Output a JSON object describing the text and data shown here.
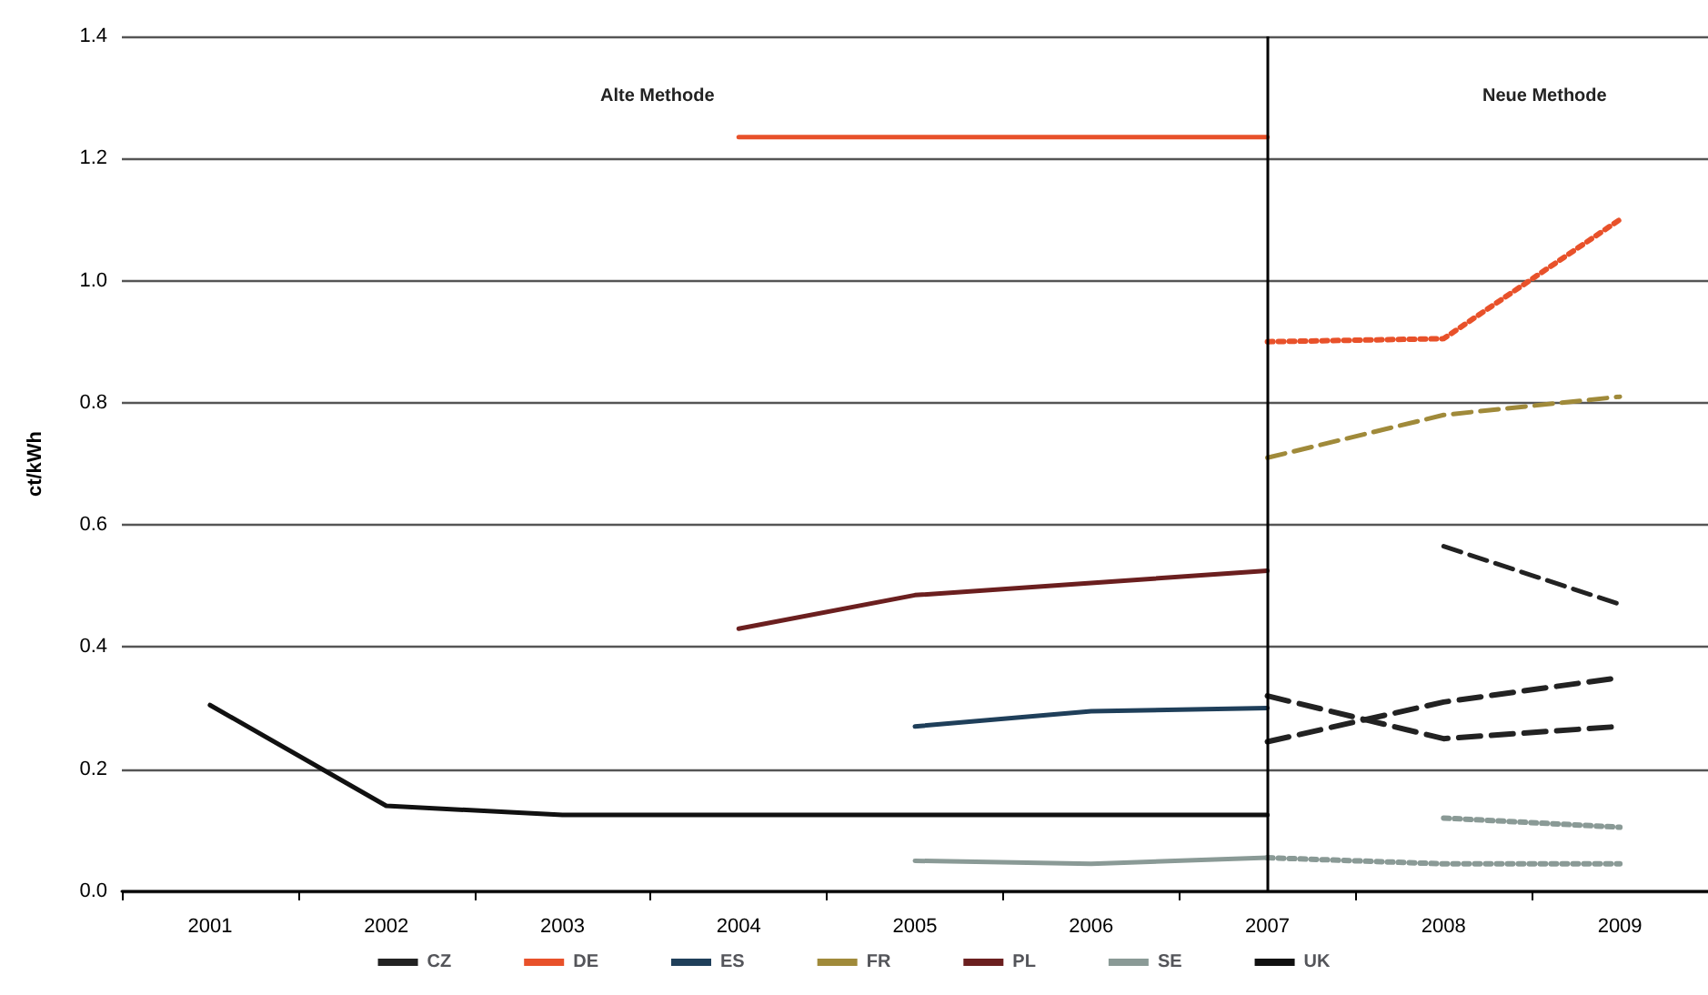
{
  "chart_data": {
    "type": "line",
    "ylabel": "ct/kWh",
    "categories": [
      "2001",
      "2002",
      "2003",
      "2004",
      "2005",
      "2006",
      "2007",
      "2008",
      "2009"
    ],
    "ylim": [
      0,
      1.4
    ],
    "yticks": [
      {
        "value": 0,
        "label": "0.0"
      },
      {
        "value": 0.2,
        "label": "0.2"
      },
      {
        "value": 0.4,
        "label": "0.4"
      },
      {
        "value": 0.6,
        "label": "0.6"
      },
      {
        "value": 0.8,
        "label": "0.8"
      },
      {
        "value": 1,
        "label": "1.0"
      },
      {
        "value": 1.2,
        "label": "1.2"
      },
      {
        "value": 1.4,
        "label": "1.4"
      }
    ],
    "grid": "y",
    "legend": "bottom",
    "marker": "none",
    "annotations": [
      "Alte Methode",
      "Neue Methode"
    ],
    "ref_lines": [
      {
        "axis": "x",
        "value": "2007",
        "color": "#000000"
      }
    ],
    "series": [
      {
        "name": "CZ",
        "color": "#222222",
        "line_style": "dashed",
        "values": [
          null,
          null,
          null,
          null,
          null,
          null,
          null,
          0.565,
          0.47
        ]
      },
      {
        "name": "DE",
        "color": "#e8512a",
        "values": [
          null,
          null,
          null,
          1.235,
          1.235,
          1.235,
          1.235,
          null,
          null
        ]
      },
      {
        "name": "ES",
        "color": "#1f3f5a",
        "values": [
          null,
          null,
          null,
          null,
          0.27,
          0.295,
          0.3,
          null,
          null
        ]
      },
      {
        "name": "FR",
        "color": "#a08a3a",
        "line_style": "dashed",
        "values": [
          null,
          null,
          null,
          null,
          null,
          null,
          0.71,
          0.78,
          0.81
        ]
      },
      {
        "name": "PL",
        "color": "#6b1f1f",
        "values": [
          null,
          null,
          null,
          0.43,
          0.485,
          0.505,
          0.525,
          null,
          null
        ]
      },
      {
        "name": "SE",
        "color": "#8a9a96",
        "values": [
          null,
          null,
          null,
          null,
          0.05,
          0.045,
          0.055,
          null,
          null
        ]
      },
      {
        "name": "UK",
        "color": "#111111",
        "values": [
          0.305,
          0.14,
          0.125,
          0.125,
          0.125,
          0.125,
          0.125,
          null,
          null
        ]
      },
      {
        "color": "#e8512a",
        "line_style": "dotted",
        "values": [
          null,
          null,
          null,
          null,
          null,
          null,
          0.9,
          0.905,
          1.1
        ]
      },
      {
        "color": "#222222",
        "line_style": "dashed",
        "values": [
          null,
          null,
          null,
          null,
          null,
          null,
          0.32,
          0.25,
          0.27
        ]
      },
      {
        "color": "#222222",
        "line_style": "dashed",
        "values": [
          null,
          null,
          null,
          null,
          null,
          null,
          0.245,
          0.31,
          0.35
        ]
      },
      {
        "color": "#8a9a96",
        "line_style": "dotted",
        "values": [
          null,
          null,
          null,
          null,
          null,
          null,
          null,
          0.12,
          0.105
        ]
      },
      {
        "color": "#8a9a96",
        "line_style": "dotted",
        "values": [
          null,
          null,
          null,
          null,
          null,
          null,
          0.055,
          0.045,
          0.045
        ]
      }
    ]
  }
}
